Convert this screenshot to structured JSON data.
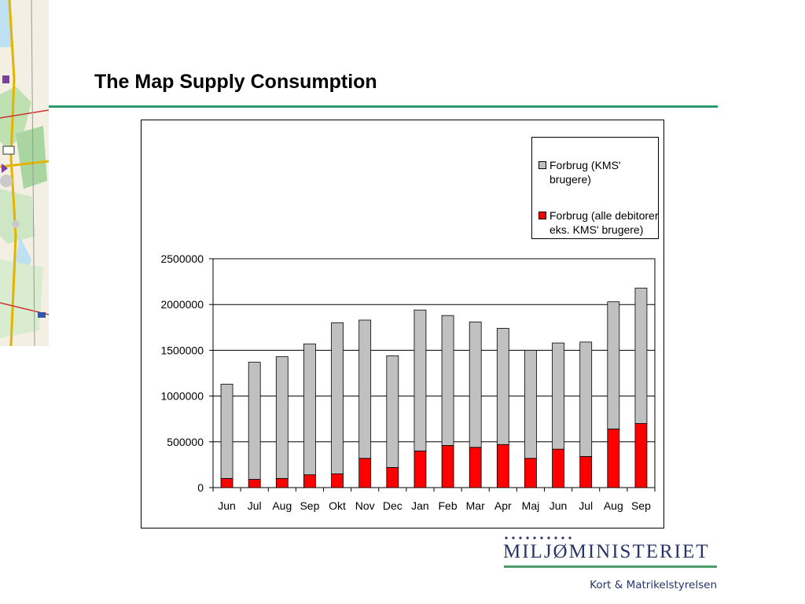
{
  "slide": {
    "title": "The Map Supply Consumption",
    "logo": {
      "name": "MILJØMINISTERIET",
      "agency": "Kort & Matrikelstyrelsen"
    }
  },
  "colors": {
    "accent": "#2e9b6e",
    "logo_blue": "#26346b",
    "logo_green": "#4f9a6a",
    "bar_gray": "#c0c0c0",
    "bar_red": "#ff0000"
  },
  "chart_data": {
    "type": "bar",
    "stacked": true,
    "title": "",
    "xlabel": "",
    "ylabel": "",
    "categories": [
      "Jun",
      "Jul",
      "Aug",
      "Sep",
      "Okt",
      "Nov",
      "Dec",
      "Jan",
      "Feb",
      "Mar",
      "Apr",
      "Maj",
      "Jun",
      "Jul",
      "Aug",
      "Sep"
    ],
    "series": [
      {
        "name": "Forbrug (alle debitorer eks. KMS' brugere)",
        "color": "#ff0000",
        "values": [
          100000,
          90000,
          100000,
          140000,
          150000,
          320000,
          220000,
          400000,
          460000,
          440000,
          470000,
          320000,
          420000,
          340000,
          640000,
          700000
        ]
      },
      {
        "name": "Forbrug (KMS' brugere)",
        "color": "#c0c0c0",
        "values": [
          1030000,
          1280000,
          1330000,
          1430000,
          1650000,
          1510000,
          1220000,
          1540000,
          1420000,
          1370000,
          1270000,
          1180000,
          1160000,
          1250000,
          1390000,
          1480000
        ]
      }
    ],
    "legend_order": [
      1,
      0
    ],
    "ylim": [
      0,
      2500000
    ],
    "yticks": [
      0,
      500000,
      1000000,
      1500000,
      2000000,
      2500000
    ],
    "grid": true,
    "legend_position": "top-right"
  }
}
